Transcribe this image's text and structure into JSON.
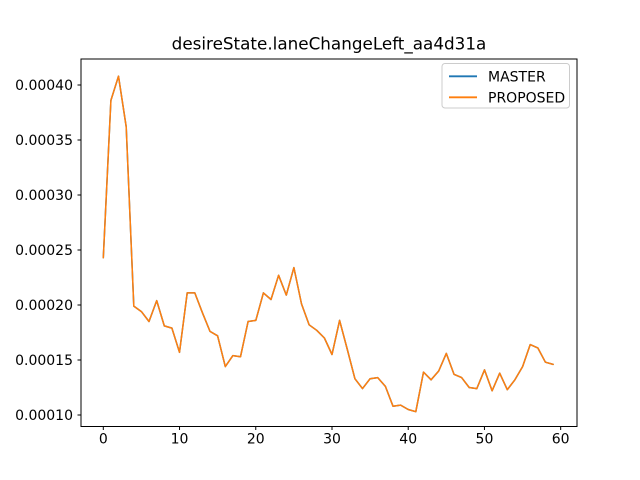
{
  "title": "desireState.laneChangeLeft_aa4d31a",
  "legend": {
    "position": "upper right",
    "entries": [
      {
        "label": "MASTER",
        "color": "#1f77b4"
      },
      {
        "label": "PROPOSED",
        "color": "#ff7f0e"
      }
    ]
  },
  "axes": {
    "x_tick_labels": [
      "0",
      "10",
      "20",
      "30",
      "40",
      "50",
      "60"
    ],
    "y_tick_labels": [
      "0.00010",
      "0.00015",
      "0.00020",
      "0.00025",
      "0.00030",
      "0.00035",
      "0.00040"
    ]
  },
  "chart_data": {
    "type": "line",
    "title": "desireState.laneChangeLeft_aa4d31a",
    "xlabel": "",
    "ylabel": "",
    "grid": false,
    "legend_position": "upper right",
    "xlim": [
      -2.95,
      61.95
    ],
    "ylim": [
      8.95e-05,
      0.000424
    ],
    "x": [
      0,
      1,
      2,
      3,
      4,
      5,
      6,
      7,
      8,
      9,
      10,
      11,
      12,
      13,
      14,
      15,
      16,
      17,
      18,
      19,
      20,
      21,
      22,
      23,
      24,
      25,
      26,
      27,
      28,
      29,
      30,
      31,
      32,
      33,
      34,
      35,
      36,
      37,
      38,
      39,
      40,
      41,
      42,
      43,
      44,
      45,
      46,
      47,
      48,
      49,
      50,
      51,
      52,
      53,
      54,
      55,
      56,
      57,
      58,
      59
    ],
    "series": [
      {
        "name": "MASTER",
        "color": "#1f77b4",
        "values": [
          0.000243,
          0.000386,
          0.000408,
          0.000362,
          0.000199,
          0.000194,
          0.000185,
          0.000204,
          0.000181,
          0.000179,
          0.000157,
          0.000211,
          0.000211,
          0.000193,
          0.000176,
          0.000172,
          0.000144,
          0.000154,
          0.000153,
          0.000185,
          0.000186,
          0.000211,
          0.000205,
          0.000227,
          0.000209,
          0.000234,
          0.000201,
          0.000182,
          0.000177,
          0.00017,
          0.000155,
          0.000186,
          0.00016,
          0.000133,
          0.000124,
          0.000133,
          0.000134,
          0.000126,
          0.000108,
          0.000109,
          0.000105,
          0.000103,
          0.000139,
          0.000132,
          0.00014,
          0.000156,
          0.000137,
          0.000134,
          0.000125,
          0.000124,
          0.000141,
          0.000122,
          0.000138,
          0.000123,
          0.000132,
          0.000144,
          0.000164,
          0.000161,
          0.000148,
          0.000146
        ]
      },
      {
        "name": "PROPOSED",
        "color": "#ff7f0e",
        "values": [
          0.000243,
          0.000386,
          0.000408,
          0.000362,
          0.000199,
          0.000194,
          0.000185,
          0.000204,
          0.000181,
          0.000179,
          0.000157,
          0.000211,
          0.000211,
          0.000193,
          0.000176,
          0.000172,
          0.000144,
          0.000154,
          0.000153,
          0.000185,
          0.000186,
          0.000211,
          0.000205,
          0.000227,
          0.000209,
          0.000234,
          0.000201,
          0.000182,
          0.000177,
          0.00017,
          0.000155,
          0.000186,
          0.00016,
          0.000133,
          0.000124,
          0.000133,
          0.000134,
          0.000126,
          0.000108,
          0.000109,
          0.000105,
          0.000103,
          0.000139,
          0.000132,
          0.00014,
          0.000156,
          0.000137,
          0.000134,
          0.000125,
          0.000124,
          0.000141,
          0.000122,
          0.000138,
          0.000123,
          0.000132,
          0.000144,
          0.000164,
          0.000161,
          0.000148,
          0.000146
        ]
      }
    ]
  }
}
